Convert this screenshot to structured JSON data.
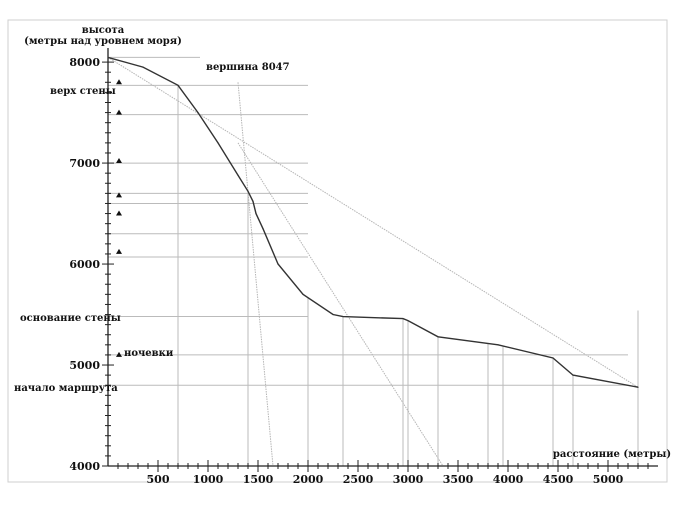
{
  "chart_data": {
    "type": "line",
    "ylabel_line1": "высота",
    "ylabel_line2": "(метры над уровнем моря)",
    "xlabel": "расстояние (метры)",
    "xlim": [
      0,
      5500
    ],
    "ylim": [
      4000,
      8100
    ],
    "x_ticks": [
      500,
      1000,
      1500,
      2000,
      2500,
      3000,
      3500,
      4000,
      4500,
      5000
    ],
    "y_ticks": [
      4000,
      5000,
      6000,
      7000,
      8000
    ],
    "series": [
      {
        "points": [
          [
            0,
            8047
          ],
          [
            350,
            7950
          ],
          [
            700,
            7770
          ],
          [
            900,
            7500
          ],
          [
            1100,
            7200
          ],
          [
            1300,
            6880
          ],
          [
            1400,
            6720
          ],
          [
            1450,
            6620
          ],
          [
            1480,
            6500
          ],
          [
            1550,
            6350
          ],
          [
            1700,
            6000
          ],
          [
            1950,
            5700
          ],
          [
            2250,
            5500
          ],
          [
            2350,
            5480
          ],
          [
            2950,
            5460
          ],
          [
            3000,
            5440
          ],
          [
            3300,
            5280
          ],
          [
            3900,
            5200
          ],
          [
            4450,
            5070
          ],
          [
            4650,
            4900
          ],
          [
            5300,
            4780
          ]
        ]
      }
    ],
    "annotations": [
      {
        "text": "вершина 8047",
        "x": 0,
        "y": 8047,
        "marker": false
      },
      {
        "text": "верх стены",
        "x": 700,
        "y": 7770,
        "marker": true
      },
      {
        "text": "основание стены",
        "x": 2350,
        "y": 5480,
        "marker": false
      },
      {
        "text": "ночевки",
        "x": 4450,
        "y": 5100,
        "marker": true
      },
      {
        "text": "начало маршрута",
        "x": 5300,
        "y": 4780,
        "marker": false
      }
    ],
    "camp_markers_y": [
      7800,
      7500,
      7020,
      6680,
      6500,
      6120,
      5100
    ],
    "horizontal_guides_y": [
      7770,
      7480,
      7000,
      6700,
      6600,
      6300,
      6070,
      5480,
      5100,
      4800
    ],
    "vertical_guides_x": [
      700,
      1400,
      2000,
      2350,
      2950,
      3000,
      3300,
      3800,
      3950,
      4450,
      4650,
      5300
    ],
    "gradient_lines": [
      {
        "from": [
          0,
          8047
        ],
        "to": [
          5300,
          4780
        ]
      },
      {
        "from": [
          1300,
          7800
        ],
        "to": [
          1650,
          4000
        ]
      },
      {
        "from": [
          1300,
          7200
        ],
        "to": [
          3350,
          4000
        ]
      }
    ],
    "grid": false,
    "legend": "none",
    "line_color": "#333333",
    "guide_color": "#bbbbbb"
  }
}
